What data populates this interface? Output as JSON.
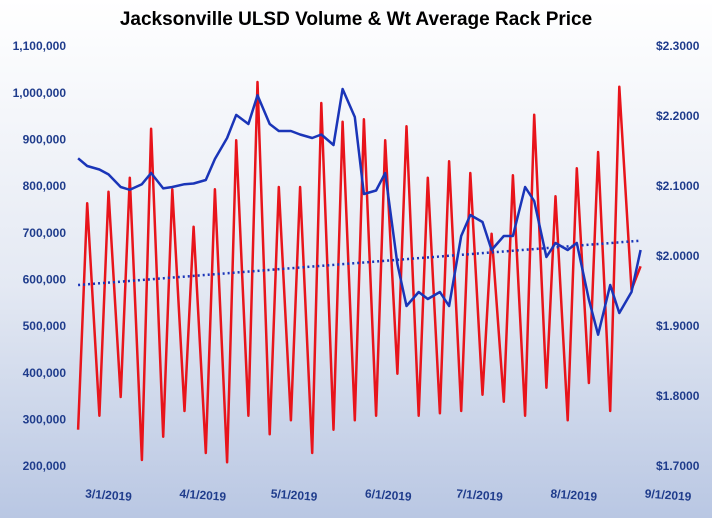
{
  "chart_data": {
    "type": "line",
    "title": "Jacksonville ULSD Volume & Wt Average Rack Price",
    "x": [
      "2019-02-19",
      "2019-02-22",
      "2019-02-26",
      "2019-03-01",
      "2019-03-05",
      "2019-03-08",
      "2019-03-12",
      "2019-03-15",
      "2019-03-19",
      "2019-03-22",
      "2019-03-26",
      "2019-03-29",
      "2019-04-02",
      "2019-04-05",
      "2019-04-09",
      "2019-04-12",
      "2019-04-16",
      "2019-04-19",
      "2019-04-23",
      "2019-04-26",
      "2019-04-30",
      "2019-05-03",
      "2019-05-07",
      "2019-05-10",
      "2019-05-14",
      "2019-05-17",
      "2019-05-21",
      "2019-05-24",
      "2019-05-28",
      "2019-05-31",
      "2019-06-04",
      "2019-06-07",
      "2019-06-11",
      "2019-06-14",
      "2019-06-18",
      "2019-06-21",
      "2019-06-25",
      "2019-06-28",
      "2019-07-02",
      "2019-07-05",
      "2019-07-09",
      "2019-07-12",
      "2019-07-16",
      "2019-07-19",
      "2019-07-23",
      "2019-07-26",
      "2019-07-30",
      "2019-08-02",
      "2019-08-06",
      "2019-08-09",
      "2019-08-13",
      "2019-08-16",
      "2019-08-20",
      "2019-08-23"
    ],
    "series": [
      {
        "color": "#e8141b",
        "values": [
          280000,
          765000,
          310000,
          790000,
          350000,
          820000,
          215000,
          925000,
          265000,
          795000,
          320000,
          715000,
          230000,
          795000,
          210000,
          900000,
          310000,
          1025000,
          270000,
          800000,
          300000,
          800000,
          230000,
          980000,
          280000,
          940000,
          300000,
          945000,
          310000,
          900000,
          400000,
          930000,
          310000,
          820000,
          315000,
          855000,
          320000,
          830000,
          355000,
          700000,
          340000,
          825000,
          310000,
          955000,
          370000,
          780000,
          300000,
          840000,
          380000,
          875000,
          320000,
          1015000,
          580000,
          630000
        ]
      },
      {
        "color": "#1a35b8",
        "axis": "y2",
        "values": [
          2.141,
          2.13,
          2.125,
          2.118,
          2.1,
          2.096,
          2.104,
          2.12,
          2.098,
          2.1,
          2.104,
          2.105,
          2.11,
          2.14,
          2.17,
          2.203,
          2.19,
          2.231,
          2.19,
          2.18,
          2.18,
          2.175,
          2.17,
          2.175,
          2.16,
          2.24,
          2.2,
          2.09,
          2.095,
          2.12,
          1.99,
          1.93,
          1.95,
          1.94,
          1.95,
          1.93,
          2.03,
          2.06,
          2.05,
          2.01,
          2.03,
          2.03,
          2.1,
          2.08,
          2.0,
          2.02,
          2.01,
          2.02,
          1.939,
          1.889,
          1.96,
          1.92,
          1.95,
          2.01
        ]
      }
    ],
    "trend": {
      "color": "#1a35b8",
      "values": [
        590000,
        685000
      ]
    },
    "xlim": [
      "2019-02-17",
      "2019-09-01"
    ],
    "xticks": [
      {
        "value": "2019-03-01",
        "label": "3/1/2019"
      },
      {
        "value": "2019-04-01",
        "label": "4/1/2019"
      },
      {
        "value": "2019-05-01",
        "label": "5/1/2019"
      },
      {
        "value": "2019-06-01",
        "label": "6/1/2019"
      },
      {
        "value": "2019-07-01",
        "label": "7/1/2019"
      },
      {
        "value": "2019-08-01",
        "label": "8/1/2019"
      },
      {
        "value": "2019-09-01",
        "label": "9/1/2019"
      }
    ],
    "ylim": [
      200000,
      1100000
    ],
    "yticks": [
      {
        "value": 200000,
        "label": "200,000"
      },
      {
        "value": 300000,
        "label": "300,000"
      },
      {
        "value": 400000,
        "label": "400,000"
      },
      {
        "value": 500000,
        "label": "500,000"
      },
      {
        "value": 600000,
        "label": "600,000"
      },
      {
        "value": 700000,
        "label": "700,000"
      },
      {
        "value": 800000,
        "label": "800,000"
      },
      {
        "value": 900000,
        "label": "900,000"
      },
      {
        "value": 1000000,
        "label": "1,000,000"
      },
      {
        "value": 1100000,
        "label": "1,100,000"
      }
    ],
    "y2lim": [
      1.7,
      2.3
    ],
    "y2ticks": [
      {
        "value": 1.7,
        "label": "$1.7000"
      },
      {
        "value": 1.8,
        "label": "$1.8000"
      },
      {
        "value": 1.9,
        "label": "$1.9000"
      },
      {
        "value": 2.0,
        "label": "$2.0000"
      },
      {
        "value": 2.1,
        "label": "$2.1000"
      },
      {
        "value": 2.2,
        "label": "$2.2000"
      },
      {
        "value": 2.3,
        "label": "$2.3000"
      }
    ]
  }
}
